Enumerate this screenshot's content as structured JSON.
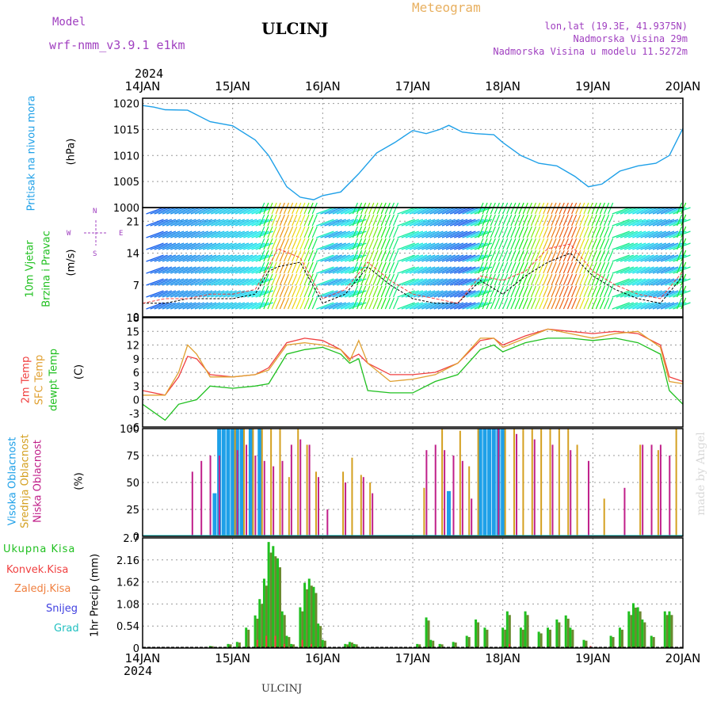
{
  "header": {
    "model_label": "Model",
    "model_name": "wrf-nmm_v3.9.1 e1km",
    "station": "ULCINJ",
    "chart_kind": "Meteogram",
    "location": "lon,lat (19.3E, 41.9375N)",
    "elevation": "Nadmorska Visina 29m",
    "model_elevation": "Nadmorska Visina u modelu 11.5272m",
    "footer_station": "ULCINJ",
    "watermark": "made by Angel"
  },
  "colors": {
    "pressure": "#1ea0e8",
    "temp2m": "#f04040",
    "sfc": "#e0a030",
    "dewpt": "#20c020",
    "cloud_high": "#1ea0e8",
    "cloud_mid": "#d4a020",
    "cloud_low": "#c0208a",
    "precip_total": "#20c020",
    "precip_conv": "#f04040",
    "snow": "#4040e0",
    "hail": "#20c0c0",
    "wind_speed": "#f04040",
    "wind_gust": "#000000"
  },
  "chart_data": [
    {
      "type": "line",
      "panel": "pressure",
      "ylabel_left": "Pritisak na nivou mora",
      "ylabel_right": "(hPa)",
      "ylim": [
        1000,
        1021
      ],
      "yticks": [
        "1020",
        "1015",
        "1010",
        "1005",
        "1000"
      ],
      "x_labels_top": [
        "14JAN",
        "15JAN",
        "16JAN",
        "17JAN",
        "18JAN",
        "19JAN",
        "20JAN"
      ],
      "year_top": "2024",
      "x": [
        0,
        0.125,
        0.25,
        0.5,
        0.75,
        1.0,
        1.25,
        1.4,
        1.5,
        1.6,
        1.75,
        1.9,
        2.0,
        2.2,
        2.4,
        2.6,
        2.8,
        3.0,
        3.15,
        3.3,
        3.4,
        3.55,
        3.7,
        3.9,
        4.0,
        4.2,
        4.4,
        4.6,
        4.8,
        4.95,
        5.1,
        5.3,
        5.5,
        5.7,
        5.85,
        6.0
      ],
      "y": [
        1019.6,
        1019.3,
        1018.8,
        1018.7,
        1016.5,
        1015.7,
        1013.0,
        1010.0,
        1007.0,
        1004.0,
        1002.0,
        1001.5,
        1002.3,
        1003.0,
        1006.5,
        1010.5,
        1012.5,
        1014.8,
        1014.2,
        1015.0,
        1015.8,
        1014.5,
        1014.2,
        1014.0,
        1012.5,
        1010.0,
        1008.5,
        1008.0,
        1006.0,
        1004.0,
        1004.5,
        1007.0,
        1008.0,
        1008.5,
        1010.0,
        1015.2
      ]
    },
    {
      "type": "line",
      "panel": "wind",
      "ylabel_left": [
        "10m Vjetar",
        "Brzina i Pravac"
      ],
      "ylabel_right": "(m/s)",
      "compass": {
        "n": "N",
        "w": "W",
        "e": "E",
        "s": "S"
      },
      "ylim": [
        0,
        24
      ],
      "yticks": [
        "21",
        "14",
        "7",
        "0"
      ],
      "x": [
        0,
        0.25,
        0.5,
        0.75,
        1.0,
        1.25,
        1.4,
        1.5,
        1.75,
        2.0,
        2.25,
        2.5,
        2.75,
        3.0,
        3.25,
        3.5,
        3.75,
        4.0,
        4.25,
        4.5,
        4.75,
        5.0,
        5.25,
        5.5,
        5.75,
        6.0
      ],
      "series": [
        {
          "name": "speed",
          "values": [
            3,
            4,
            4,
            5,
            5,
            6,
            11,
            15,
            13,
            4,
            6,
            12,
            8,
            5,
            4,
            3,
            9,
            8,
            10,
            15,
            16,
            10,
            7,
            5,
            4,
            10
          ]
        },
        {
          "name": "gust",
          "values": [
            3,
            3,
            4,
            4,
            4,
            5,
            10,
            11,
            12,
            3,
            5,
            11,
            7,
            4,
            3,
            3,
            8,
            5,
            9,
            12,
            14,
            9,
            6,
            4,
            3,
            9
          ]
        }
      ]
    },
    {
      "type": "line",
      "panel": "temperature",
      "ylabels_left": [
        "2m Temp",
        "SFC Temp",
        "dewpt Temp"
      ],
      "ylabel_right": "(C)",
      "ylim": [
        -6,
        18
      ],
      "yticks": [
        "18",
        "15",
        "12",
        "9",
        "6",
        "3",
        "0",
        "-3",
        "-6"
      ],
      "x": [
        0,
        0.25,
        0.4,
        0.5,
        0.6,
        0.75,
        1.0,
        1.25,
        1.4,
        1.6,
        1.8,
        2.0,
        2.2,
        2.3,
        2.4,
        2.5,
        2.75,
        3.0,
        3.25,
        3.5,
        3.75,
        3.9,
        4.0,
        4.25,
        4.5,
        4.75,
        5.0,
        5.25,
        5.5,
        5.75,
        5.85,
        6.0
      ],
      "series": [
        {
          "name": "2m Temp",
          "values": [
            2,
            1,
            5,
            9.5,
            9,
            5.5,
            5,
            5.5,
            7,
            12.5,
            13.5,
            13,
            11,
            9,
            10,
            8,
            5.5,
            5.5,
            6,
            8,
            13,
            13.5,
            12,
            14,
            15.5,
            15,
            14.5,
            15,
            14.5,
            12,
            5,
            4
          ]
        },
        {
          "name": "SFC Temp",
          "values": [
            1,
            1,
            6,
            12,
            10,
            5,
            5,
            5.5,
            6.5,
            12,
            12.5,
            12,
            11,
            8.5,
            13,
            8,
            4,
            4.5,
            5.5,
            8,
            13.5,
            13.5,
            11.5,
            13.5,
            15.5,
            14.5,
            13.5,
            14.5,
            15,
            11.5,
            4,
            3.5
          ]
        },
        {
          "name": "dewpt Temp",
          "values": [
            -1,
            -4.5,
            -1,
            -0.5,
            0,
            3,
            2.5,
            3,
            3.5,
            10,
            11,
            11.5,
            10,
            8,
            9,
            2,
            1.5,
            1.5,
            4,
            5.5,
            11,
            12,
            10.5,
            12.5,
            13.5,
            13.5,
            13,
            13.5,
            12.5,
            10,
            2,
            -1
          ]
        }
      ]
    },
    {
      "type": "bar",
      "panel": "clouds",
      "ylabels_left": [
        "Visoka Oblacnost",
        "Srednja Oblacnost",
        "Niska Oblacnost"
      ],
      "ylabel_right": "(%)",
      "ylim": [
        0,
        100
      ],
      "yticks": [
        "100",
        "75",
        "50",
        "25",
        "0"
      ],
      "series": [
        {
          "name": "Visoka Oblacnost",
          "x": [
            0.8,
            0.85,
            0.9,
            0.95,
            1.0,
            1.05,
            1.1,
            1.2,
            1.3,
            3.4,
            3.75,
            3.8,
            3.85,
            3.9,
            3.95,
            4.0
          ],
          "values": [
            40,
            100,
            100,
            100,
            100,
            100,
            100,
            100,
            100,
            42,
            100,
            100,
            100,
            100,
            100,
            100
          ]
        },
        {
          "name": "Srednja Oblacnost",
          "x": [
            1.0,
            1.1,
            1.2,
            1.3,
            1.4,
            1.5,
            1.6,
            1.7,
            1.8,
            1.9,
            2.2,
            2.3,
            2.4,
            2.5,
            3.1,
            3.3,
            3.5,
            3.6,
            3.7,
            4.0,
            4.1,
            4.2,
            4.3,
            4.4,
            4.5,
            4.6,
            4.7,
            4.8,
            5.1,
            5.5,
            5.7,
            5.9
          ],
          "values": [
            100,
            100,
            100,
            100,
            100,
            100,
            55,
            100,
            85,
            60,
            60,
            73,
            57,
            50,
            45,
            100,
            98,
            65,
            100,
            100,
            100,
            100,
            100,
            100,
            100,
            100,
            100,
            85,
            35,
            85,
            80,
            100
          ]
        },
        {
          "name": "Niska Oblacnost",
          "x": [
            0.5,
            0.6,
            0.7,
            0.8,
            1.0,
            1.1,
            1.2,
            1.3,
            1.4,
            1.5,
            1.6,
            1.7,
            1.8,
            1.9,
            2.0,
            2.2,
            2.4,
            2.5,
            3.1,
            3.2,
            3.3,
            3.4,
            3.5,
            3.6,
            3.9,
            4.1,
            4.3,
            4.5,
            4.7,
            4.9,
            5.3,
            5.5,
            5.6,
            5.7,
            5.8
          ],
          "values": [
            60,
            70,
            75,
            75,
            80,
            85,
            75,
            70,
            65,
            70,
            85,
            90,
            85,
            55,
            25,
            50,
            55,
            40,
            80,
            85,
            80,
            75,
            70,
            35,
            100,
            95,
            90,
            85,
            80,
            70,
            45,
            85,
            85,
            85,
            75
          ]
        }
      ]
    },
    {
      "type": "bar",
      "panel": "precipitation",
      "ylabels_left": [
        "Ukupna Kisa",
        "Konvek.Kisa",
        "Zaledj.Kisa",
        "Snijeg",
        "Grad"
      ],
      "ylabel_right": "1hr Precip (mm)",
      "ylim": [
        0,
        2.7
      ],
      "yticks": [
        "2.7",
        "2.16",
        "1.62",
        "1.08",
        "0.54",
        "0"
      ],
      "x_labels_bottom": [
        "14JAN",
        "15JAN",
        "16JAN",
        "17JAN",
        "18JAN",
        "19JAN",
        "20JAN"
      ],
      "year_bottom": "2024",
      "series": [
        {
          "name": "Ukupna Kisa",
          "x": [
            0.75,
            0.95,
            1.05,
            1.15,
            1.25,
            1.3,
            1.35,
            1.4,
            1.45,
            1.5,
            1.55,
            1.6,
            1.65,
            1.75,
            1.8,
            1.85,
            1.9,
            1.95,
            2.0,
            2.25,
            2.3,
            2.35,
            3.05,
            3.15,
            3.2,
            3.3,
            3.45,
            3.6,
            3.7,
            3.8,
            4.0,
            4.05,
            4.2,
            4.25,
            4.4,
            4.5,
            4.6,
            4.7,
            4.75,
            4.9,
            5.2,
            5.3,
            5.4,
            5.45,
            5.5,
            5.55,
            5.65,
            5.8,
            5.85
          ],
          "values": [
            0.05,
            0.1,
            0.15,
            0.5,
            0.8,
            1.2,
            1.7,
            2.6,
            2.5,
            2.2,
            0.9,
            0.3,
            0.1,
            1.0,
            1.6,
            1.7,
            1.5,
            0.6,
            0.2,
            0.1,
            0.15,
            0.1,
            0.1,
            0.75,
            0.2,
            0.1,
            0.15,
            0.3,
            0.7,
            0.5,
            0.5,
            0.9,
            0.5,
            0.9,
            0.4,
            0.5,
            0.7,
            0.8,
            0.5,
            0.2,
            0.3,
            0.5,
            0.9,
            1.1,
            1.0,
            0.7,
            0.3,
            0.9,
            0.9
          ]
        },
        {
          "name": "Konvek.Kisa",
          "x": [
            1.3,
            1.4,
            1.5,
            1.6,
            1.8,
            1.9,
            4.1,
            5.0
          ],
          "values": [
            0.2,
            0.3,
            0.3,
            0.1,
            0.2,
            0.1,
            0.1,
            0.05
          ]
        },
        {
          "name": "Zaledj.Kisa",
          "x": [],
          "values": []
        },
        {
          "name": "Snijeg",
          "x": [],
          "values": []
        },
        {
          "name": "Grad",
          "x": [],
          "values": []
        }
      ]
    }
  ]
}
